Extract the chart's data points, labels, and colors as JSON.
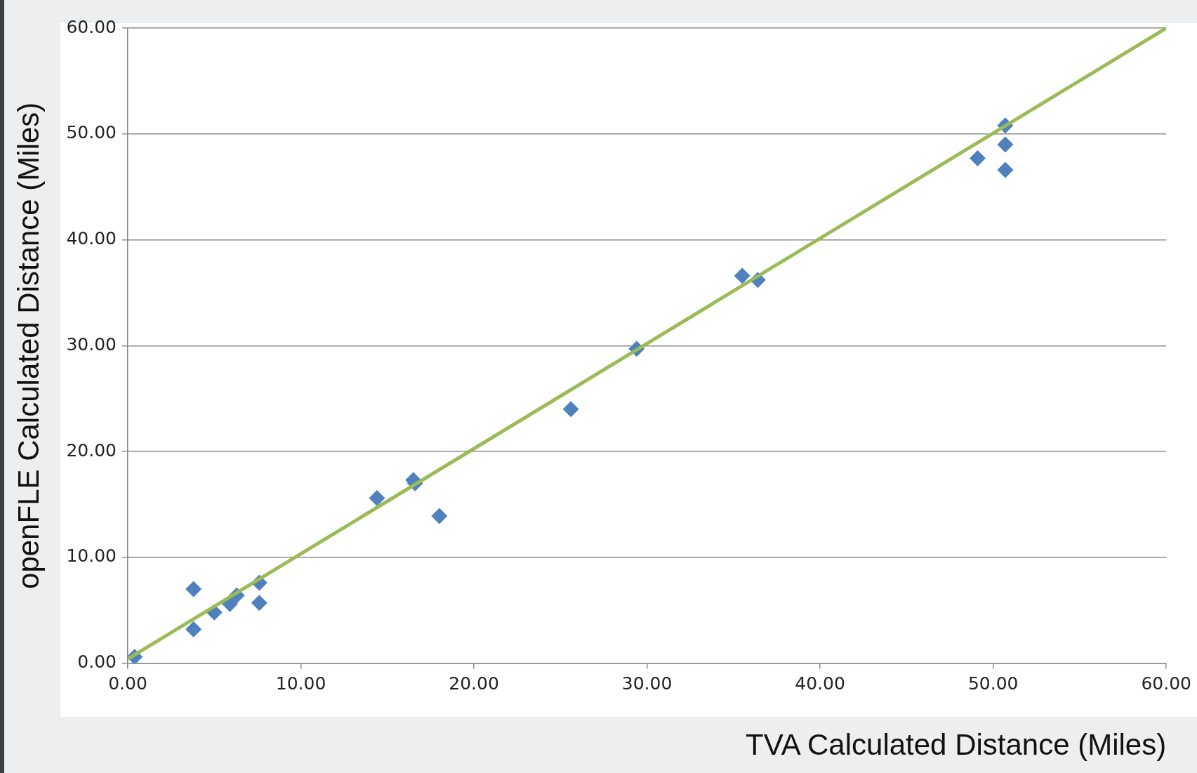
{
  "chart_data": {
    "type": "scatter",
    "xlabel": "TVA Calculated Distance (Miles)",
    "ylabel": "openFLE Calculated Distance (Miles)",
    "xlim": [
      0,
      60
    ],
    "ylim": [
      0,
      60
    ],
    "xticks": [
      {
        "value": 0,
        "label": "0.00"
      },
      {
        "value": 10,
        "label": "10.00"
      },
      {
        "value": 20,
        "label": "20.00"
      },
      {
        "value": 30,
        "label": "30.00"
      },
      {
        "value": 40,
        "label": "40.00"
      },
      {
        "value": 50,
        "label": "50.00"
      },
      {
        "value": 60,
        "label": "60.00"
      }
    ],
    "yticks": [
      {
        "value": 0,
        "label": "0.00"
      },
      {
        "value": 10,
        "label": "10.00"
      },
      {
        "value": 20,
        "label": "20.00"
      },
      {
        "value": 30,
        "label": "30.00"
      },
      {
        "value": 40,
        "label": "40.00"
      },
      {
        "value": 50,
        "label": "50.00"
      },
      {
        "value": 60,
        "label": "60.00"
      }
    ],
    "grid": "y",
    "legend": false,
    "series": [
      {
        "marker": "diamond",
        "color": "#4f81bd",
        "x": [
          0.4,
          3.8,
          3.8,
          5.0,
          5.9,
          6.3,
          7.6,
          7.6,
          14.4,
          16.5,
          16.6,
          18.0,
          25.6,
          29.4,
          35.5,
          36.4,
          49.1,
          50.7,
          50.7,
          50.7
        ],
        "values": [
          0.6,
          7.0,
          3.2,
          4.8,
          5.6,
          6.4,
          7.6,
          5.7,
          15.6,
          17.3,
          17.0,
          13.9,
          24.0,
          29.7,
          36.6,
          36.2,
          47.7,
          50.8,
          49.0,
          46.6
        ]
      },
      {
        "type": "line",
        "marker": "none",
        "color": "#9bbb59",
        "x": [
          0,
          60
        ],
        "values": [
          0.4,
          60
        ]
      }
    ]
  }
}
